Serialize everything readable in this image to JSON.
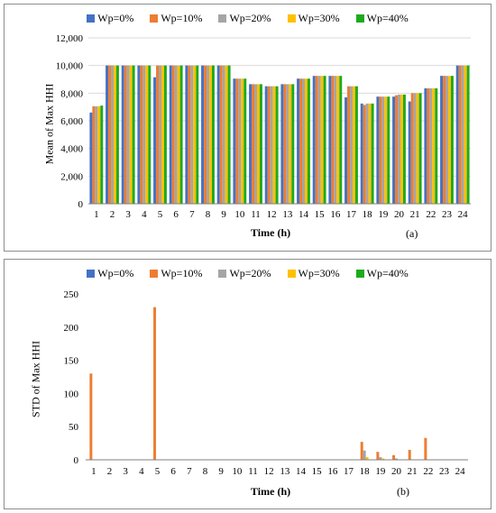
{
  "chart_data": [
    {
      "type": "bar",
      "panel_tag": "(a)",
      "xlabel": "Time (h)",
      "ylabel": "Mean of Max HHI",
      "ylim": [
        0,
        12000
      ],
      "yticks": [
        "0",
        "2,000",
        "4,000",
        "6,000",
        "8,000",
        "10,000",
        "12,000"
      ],
      "ytick_values": [
        0,
        2000,
        4000,
        6000,
        8000,
        10000,
        12000
      ],
      "grid": true,
      "legend_position": "top",
      "categories": [
        "1",
        "2",
        "3",
        "4",
        "5",
        "6",
        "7",
        "8",
        "9",
        "10",
        "11",
        "12",
        "13",
        "14",
        "15",
        "16",
        "17",
        "18",
        "19",
        "20",
        "21",
        "22",
        "23",
        "24"
      ],
      "series": [
        {
          "name": "Wp=0%",
          "color": "#4472C4",
          "values": [
            6600,
            10000,
            10000,
            10000,
            9150,
            10000,
            10000,
            10000,
            10000,
            9050,
            8650,
            8500,
            8650,
            9050,
            9250,
            9250,
            7700,
            7250,
            7750,
            7750,
            7400,
            8350,
            9250,
            10000
          ]
        },
        {
          "name": "Wp=10%",
          "color": "#ED7D31",
          "values": [
            7050,
            10000,
            10000,
            10000,
            10000,
            10000,
            10000,
            10000,
            10000,
            9050,
            8650,
            8500,
            8650,
            9050,
            9250,
            9250,
            8500,
            7150,
            7750,
            7850,
            8000,
            8350,
            9250,
            10000
          ]
        },
        {
          "name": "Wp=20%",
          "color": "#A5A5A5",
          "values": [
            7050,
            10000,
            10000,
            10000,
            10000,
            10000,
            10000,
            10000,
            10000,
            9050,
            8650,
            8500,
            8650,
            9050,
            9250,
            9250,
            8500,
            7250,
            7750,
            7900,
            8000,
            8350,
            9250,
            10000
          ]
        },
        {
          "name": "Wp=30%",
          "color": "#FFC000",
          "values": [
            7050,
            10000,
            10000,
            10000,
            10000,
            10000,
            10000,
            10000,
            10000,
            9050,
            8650,
            8500,
            8650,
            9050,
            9250,
            9250,
            8500,
            7250,
            7750,
            7900,
            8000,
            8350,
            9250,
            10000
          ]
        },
        {
          "name": "Wp=40%",
          "color": "#1EAA1E",
          "values": [
            7100,
            10000,
            10000,
            10000,
            10000,
            10000,
            10000,
            10000,
            10000,
            9050,
            8650,
            8500,
            8650,
            9050,
            9250,
            9250,
            8500,
            7250,
            7750,
            7900,
            8000,
            8350,
            9250,
            10000
          ]
        }
      ]
    },
    {
      "type": "bar",
      "panel_tag": "(b)",
      "xlabel": "Time (h)",
      "ylabel": "STD of Max HHI",
      "ylim": [
        0,
        250
      ],
      "yticks": [
        "0",
        "50",
        "100",
        "150",
        "200",
        "250"
      ],
      "ytick_values": [
        0,
        50,
        100,
        150,
        200,
        250
      ],
      "grid": false,
      "legend_position": "top",
      "categories": [
        "1",
        "2",
        "3",
        "4",
        "5",
        "6",
        "7",
        "8",
        "9",
        "10",
        "11",
        "12",
        "13",
        "14",
        "15",
        "16",
        "17",
        "18",
        "19",
        "20",
        "21",
        "22",
        "23",
        "24"
      ],
      "series": [
        {
          "name": "Wp=0%",
          "color": "#4472C4",
          "values": [
            0,
            0,
            0,
            0,
            0,
            0,
            0,
            0,
            0,
            0,
            0,
            0,
            0,
            0,
            0,
            0,
            0,
            0,
            0,
            0,
            0,
            0,
            0,
            0
          ]
        },
        {
          "name": "Wp=10%",
          "color": "#ED7D31",
          "values": [
            130,
            0,
            0,
            0,
            230,
            0,
            0,
            0,
            0,
            0,
            0,
            0,
            0,
            0,
            0,
            0,
            0,
            27,
            12,
            7,
            15,
            33,
            0,
            0
          ]
        },
        {
          "name": "Wp=20%",
          "color": "#A5A5A5",
          "values": [
            0,
            0,
            0,
            0,
            0,
            0,
            0,
            0,
            0,
            0,
            0,
            0,
            0,
            0,
            0,
            0,
            0,
            14,
            4,
            2,
            0,
            0,
            0,
            0
          ]
        },
        {
          "name": "Wp=30%",
          "color": "#FFC000",
          "values": [
            0,
            0,
            0,
            0,
            0,
            0,
            0,
            0,
            0,
            0,
            0,
            0,
            0,
            0,
            0,
            0,
            0,
            4,
            2,
            0,
            0,
            0,
            0,
            0
          ]
        },
        {
          "name": "Wp=40%",
          "color": "#1EAA1E",
          "values": [
            0,
            0,
            0,
            0,
            0,
            0,
            0,
            0,
            0,
            0,
            0,
            0,
            0,
            0,
            0,
            0,
            0,
            0,
            0,
            0,
            0,
            0,
            0,
            0
          ]
        }
      ]
    }
  ]
}
